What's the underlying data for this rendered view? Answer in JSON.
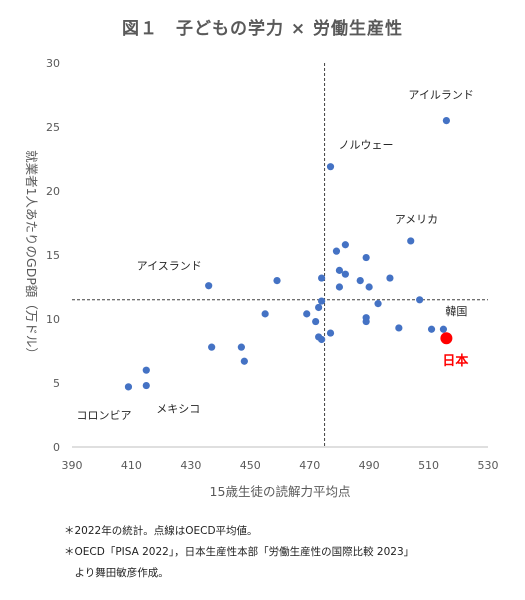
{
  "title": "図１　子どもの学力 × 労働生産性",
  "colors": {
    "point": "#4472c4",
    "highlight": "#ff0000",
    "axis": "#bfbfbf",
    "reference_line": "#404040"
  },
  "chart_data": {
    "type": "scatter",
    "title": "図１　子どもの学力 × 労働生産性",
    "xlabel": "15歳生徒の読解力平均点",
    "ylabel": "就業者1人あたりのGDP額（万ドル）",
    "xlim": [
      390,
      530
    ],
    "ylim": [
      0,
      30
    ],
    "x_ticks": [
      "390",
      "410",
      "430",
      "450",
      "470",
      "490",
      "510",
      "530"
    ],
    "y_ticks": [
      "0",
      "5",
      "10",
      "15",
      "20",
      "25",
      "30"
    ],
    "grid": false,
    "reference_lines": {
      "x": 475,
      "y": 11.5,
      "note": "OECD平均値"
    },
    "points": [
      {
        "x": 516,
        "y": 25.5,
        "label": "アイルランド"
      },
      {
        "x": 477,
        "y": 21.9,
        "label": "ノルウェー"
      },
      {
        "x": 504,
        "y": 16.1,
        "label": "アメリカ"
      },
      {
        "x": 436,
        "y": 12.6,
        "label": "アイスランド"
      },
      {
        "x": 515,
        "y": 9.2,
        "label": "韓国"
      },
      {
        "x": 516,
        "y": 8.5,
        "label": "日本",
        "highlight": true
      },
      {
        "x": 415,
        "y": 4.8,
        "label": "メキシコ"
      },
      {
        "x": 409,
        "y": 4.7,
        "label": "コロンビア"
      },
      {
        "x": 415,
        "y": 6.0
      },
      {
        "x": 437,
        "y": 7.8
      },
      {
        "x": 447,
        "y": 7.8
      },
      {
        "x": 448,
        "y": 6.7
      },
      {
        "x": 455,
        "y": 10.4
      },
      {
        "x": 459,
        "y": 13.0
      },
      {
        "x": 469,
        "y": 10.4
      },
      {
        "x": 472,
        "y": 9.8
      },
      {
        "x": 473,
        "y": 8.6
      },
      {
        "x": 474,
        "y": 8.4
      },
      {
        "x": 477,
        "y": 8.9
      },
      {
        "x": 473,
        "y": 10.9
      },
      {
        "x": 474,
        "y": 11.4
      },
      {
        "x": 474,
        "y": 13.2
      },
      {
        "x": 479,
        "y": 15.3
      },
      {
        "x": 480,
        "y": 13.8
      },
      {
        "x": 480,
        "y": 12.5
      },
      {
        "x": 482,
        "y": 15.8
      },
      {
        "x": 482,
        "y": 13.5
      },
      {
        "x": 487,
        "y": 13.0
      },
      {
        "x": 489,
        "y": 14.8
      },
      {
        "x": 490,
        "y": 12.5
      },
      {
        "x": 489,
        "y": 10.1
      },
      {
        "x": 489,
        "y": 9.8
      },
      {
        "x": 493,
        "y": 11.2
      },
      {
        "x": 497,
        "y": 13.2
      },
      {
        "x": 500,
        "y": 9.3
      },
      {
        "x": 507,
        "y": 11.5
      },
      {
        "x": 511,
        "y": 9.2
      }
    ]
  },
  "footnotes": [
    "＊2022年の統計。点線はOECD平均値。",
    "＊OECD「PISA 2022」，日本生産性本部「労働生産性の国際比較 2023」",
    "　より舞田敏彦作成。"
  ]
}
